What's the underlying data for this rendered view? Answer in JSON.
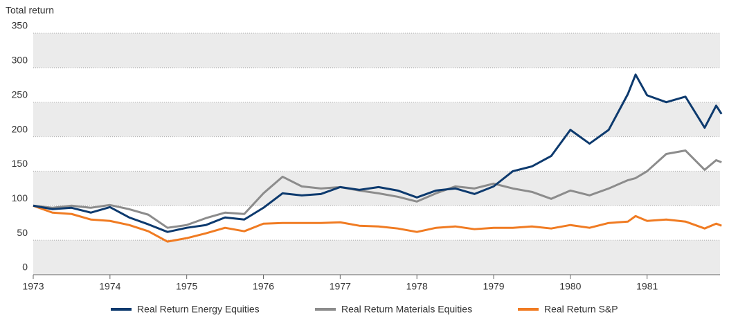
{
  "chart_data": {
    "type": "line",
    "y_label": "Total return",
    "x": [
      1973,
      1973.25,
      1973.5,
      1973.75,
      1974,
      1974.25,
      1974.5,
      1974.75,
      1975,
      1975.25,
      1975.5,
      1975.75,
      1976,
      1976.25,
      1976.5,
      1976.75,
      1977,
      1977.25,
      1977.5,
      1977.75,
      1978,
      1978.25,
      1978.5,
      1978.75,
      1979,
      1979.25,
      1979.5,
      1979.75,
      1980,
      1980.25,
      1980.5,
      1980.75,
      1980.85,
      1981,
      1981.25,
      1981.5,
      1981.75,
      1981.9,
      1981.97
    ],
    "series": [
      {
        "name": "Real Return Energy Equities",
        "color": "#0d3a6e",
        "values": [
          100,
          95,
          97,
          90,
          98,
          83,
          73,
          62,
          68,
          72,
          83,
          80,
          97,
          118,
          115,
          117,
          127,
          123,
          127,
          122,
          112,
          122,
          125,
          117,
          128,
          150,
          157,
          172,
          210,
          190,
          210,
          262,
          290,
          260,
          250,
          258,
          213,
          245,
          233
        ]
      },
      {
        "name": "Real Return Materials Equities",
        "color": "#8c8c8c",
        "values": [
          100,
          97,
          100,
          97,
          101,
          95,
          87,
          68,
          72,
          82,
          90,
          88,
          118,
          142,
          128,
          125,
          127,
          122,
          118,
          113,
          106,
          118,
          128,
          125,
          132,
          125,
          120,
          110,
          122,
          115,
          125,
          137,
          140,
          150,
          175,
          180,
          152,
          166,
          163
        ]
      },
      {
        "name": "Real Return S&P",
        "color": "#f07b22",
        "values": [
          100,
          90,
          88,
          80,
          78,
          72,
          63,
          48,
          53,
          60,
          68,
          63,
          74,
          75,
          75,
          75,
          76,
          71,
          70,
          67,
          62,
          68,
          70,
          66,
          68,
          68,
          70,
          67,
          72,
          68,
          75,
          77,
          85,
          78,
          80,
          77,
          67,
          74,
          71
        ]
      }
    ],
    "xlim": [
      1973,
      1981.95
    ],
    "xticks": [
      1973,
      1974,
      1975,
      1976,
      1977,
      1978,
      1979,
      1980,
      1981
    ],
    "ylim": [
      0,
      350
    ],
    "yticks": [
      0,
      50,
      100,
      150,
      200,
      250,
      300,
      350
    ],
    "grid": true,
    "legend": "bottom"
  }
}
